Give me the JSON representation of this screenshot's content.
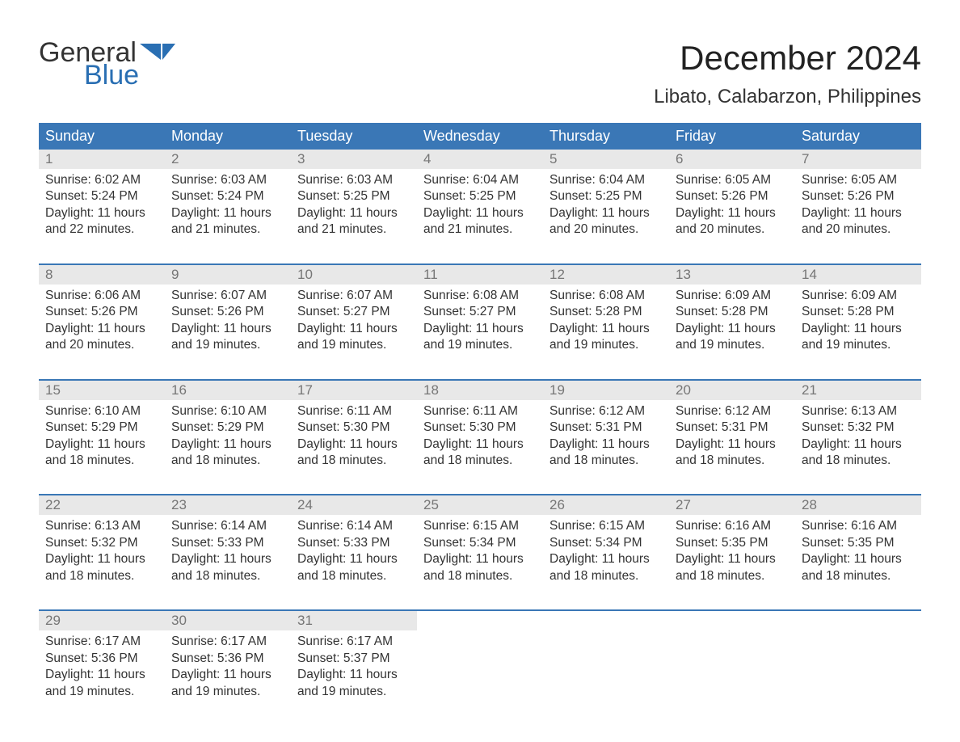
{
  "brand": {
    "word1": "General",
    "word2": "Blue",
    "accent_color": "#2a6fb3"
  },
  "title": "December 2024",
  "location": "Libato, Calabarzon, Philippines",
  "colors": {
    "header_bg": "#3a77b6",
    "header_fg": "#ffffff",
    "daynum_bg": "#e8e8e8",
    "daynum_fg": "#767676",
    "week_divider": "#3a77b6",
    "text": "#333333",
    "page_bg": "#ffffff"
  },
  "day_headers": [
    "Sunday",
    "Monday",
    "Tuesday",
    "Wednesday",
    "Thursday",
    "Friday",
    "Saturday"
  ],
  "weeks": [
    [
      {
        "n": "1",
        "sunrise": "Sunrise: 6:02 AM",
        "sunset": "Sunset: 5:24 PM",
        "dl1": "Daylight: 11 hours",
        "dl2": "and 22 minutes."
      },
      {
        "n": "2",
        "sunrise": "Sunrise: 6:03 AM",
        "sunset": "Sunset: 5:24 PM",
        "dl1": "Daylight: 11 hours",
        "dl2": "and 21 minutes."
      },
      {
        "n": "3",
        "sunrise": "Sunrise: 6:03 AM",
        "sunset": "Sunset: 5:25 PM",
        "dl1": "Daylight: 11 hours",
        "dl2": "and 21 minutes."
      },
      {
        "n": "4",
        "sunrise": "Sunrise: 6:04 AM",
        "sunset": "Sunset: 5:25 PM",
        "dl1": "Daylight: 11 hours",
        "dl2": "and 21 minutes."
      },
      {
        "n": "5",
        "sunrise": "Sunrise: 6:04 AM",
        "sunset": "Sunset: 5:25 PM",
        "dl1": "Daylight: 11 hours",
        "dl2": "and 20 minutes."
      },
      {
        "n": "6",
        "sunrise": "Sunrise: 6:05 AM",
        "sunset": "Sunset: 5:26 PM",
        "dl1": "Daylight: 11 hours",
        "dl2": "and 20 minutes."
      },
      {
        "n": "7",
        "sunrise": "Sunrise: 6:05 AM",
        "sunset": "Sunset: 5:26 PM",
        "dl1": "Daylight: 11 hours",
        "dl2": "and 20 minutes."
      }
    ],
    [
      {
        "n": "8",
        "sunrise": "Sunrise: 6:06 AM",
        "sunset": "Sunset: 5:26 PM",
        "dl1": "Daylight: 11 hours",
        "dl2": "and 20 minutes."
      },
      {
        "n": "9",
        "sunrise": "Sunrise: 6:07 AM",
        "sunset": "Sunset: 5:26 PM",
        "dl1": "Daylight: 11 hours",
        "dl2": "and 19 minutes."
      },
      {
        "n": "10",
        "sunrise": "Sunrise: 6:07 AM",
        "sunset": "Sunset: 5:27 PM",
        "dl1": "Daylight: 11 hours",
        "dl2": "and 19 minutes."
      },
      {
        "n": "11",
        "sunrise": "Sunrise: 6:08 AM",
        "sunset": "Sunset: 5:27 PM",
        "dl1": "Daylight: 11 hours",
        "dl2": "and 19 minutes."
      },
      {
        "n": "12",
        "sunrise": "Sunrise: 6:08 AM",
        "sunset": "Sunset: 5:28 PM",
        "dl1": "Daylight: 11 hours",
        "dl2": "and 19 minutes."
      },
      {
        "n": "13",
        "sunrise": "Sunrise: 6:09 AM",
        "sunset": "Sunset: 5:28 PM",
        "dl1": "Daylight: 11 hours",
        "dl2": "and 19 minutes."
      },
      {
        "n": "14",
        "sunrise": "Sunrise: 6:09 AM",
        "sunset": "Sunset: 5:28 PM",
        "dl1": "Daylight: 11 hours",
        "dl2": "and 19 minutes."
      }
    ],
    [
      {
        "n": "15",
        "sunrise": "Sunrise: 6:10 AM",
        "sunset": "Sunset: 5:29 PM",
        "dl1": "Daylight: 11 hours",
        "dl2": "and 18 minutes."
      },
      {
        "n": "16",
        "sunrise": "Sunrise: 6:10 AM",
        "sunset": "Sunset: 5:29 PM",
        "dl1": "Daylight: 11 hours",
        "dl2": "and 18 minutes."
      },
      {
        "n": "17",
        "sunrise": "Sunrise: 6:11 AM",
        "sunset": "Sunset: 5:30 PM",
        "dl1": "Daylight: 11 hours",
        "dl2": "and 18 minutes."
      },
      {
        "n": "18",
        "sunrise": "Sunrise: 6:11 AM",
        "sunset": "Sunset: 5:30 PM",
        "dl1": "Daylight: 11 hours",
        "dl2": "and 18 minutes."
      },
      {
        "n": "19",
        "sunrise": "Sunrise: 6:12 AM",
        "sunset": "Sunset: 5:31 PM",
        "dl1": "Daylight: 11 hours",
        "dl2": "and 18 minutes."
      },
      {
        "n": "20",
        "sunrise": "Sunrise: 6:12 AM",
        "sunset": "Sunset: 5:31 PM",
        "dl1": "Daylight: 11 hours",
        "dl2": "and 18 minutes."
      },
      {
        "n": "21",
        "sunrise": "Sunrise: 6:13 AM",
        "sunset": "Sunset: 5:32 PM",
        "dl1": "Daylight: 11 hours",
        "dl2": "and 18 minutes."
      }
    ],
    [
      {
        "n": "22",
        "sunrise": "Sunrise: 6:13 AM",
        "sunset": "Sunset: 5:32 PM",
        "dl1": "Daylight: 11 hours",
        "dl2": "and 18 minutes."
      },
      {
        "n": "23",
        "sunrise": "Sunrise: 6:14 AM",
        "sunset": "Sunset: 5:33 PM",
        "dl1": "Daylight: 11 hours",
        "dl2": "and 18 minutes."
      },
      {
        "n": "24",
        "sunrise": "Sunrise: 6:14 AM",
        "sunset": "Sunset: 5:33 PM",
        "dl1": "Daylight: 11 hours",
        "dl2": "and 18 minutes."
      },
      {
        "n": "25",
        "sunrise": "Sunrise: 6:15 AM",
        "sunset": "Sunset: 5:34 PM",
        "dl1": "Daylight: 11 hours",
        "dl2": "and 18 minutes."
      },
      {
        "n": "26",
        "sunrise": "Sunrise: 6:15 AM",
        "sunset": "Sunset: 5:34 PM",
        "dl1": "Daylight: 11 hours",
        "dl2": "and 18 minutes."
      },
      {
        "n": "27",
        "sunrise": "Sunrise: 6:16 AM",
        "sunset": "Sunset: 5:35 PM",
        "dl1": "Daylight: 11 hours",
        "dl2": "and 18 minutes."
      },
      {
        "n": "28",
        "sunrise": "Sunrise: 6:16 AM",
        "sunset": "Sunset: 5:35 PM",
        "dl1": "Daylight: 11 hours",
        "dl2": "and 18 minutes."
      }
    ],
    [
      {
        "n": "29",
        "sunrise": "Sunrise: 6:17 AM",
        "sunset": "Sunset: 5:36 PM",
        "dl1": "Daylight: 11 hours",
        "dl2": "and 19 minutes."
      },
      {
        "n": "30",
        "sunrise": "Sunrise: 6:17 AM",
        "sunset": "Sunset: 5:36 PM",
        "dl1": "Daylight: 11 hours",
        "dl2": "and 19 minutes."
      },
      {
        "n": "31",
        "sunrise": "Sunrise: 6:17 AM",
        "sunset": "Sunset: 5:37 PM",
        "dl1": "Daylight: 11 hours",
        "dl2": "and 19 minutes."
      },
      null,
      null,
      null,
      null
    ]
  ]
}
